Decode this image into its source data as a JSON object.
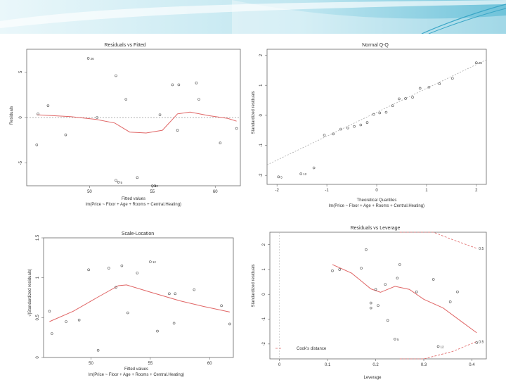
{
  "slide": {
    "colors": {
      "banner_light": "#d7f0f6",
      "banner_mid": "#9cd6e6",
      "banner_dark": "#4fb3cf"
    }
  },
  "chart_data": [
    {
      "type": "scatter",
      "title": "Residuals vs Fitted",
      "xlabel": "Fitted values",
      "sublabel": "lm(Price ~ Floor + Age + Rooms + Central.Heating)",
      "ylabel": "Residuals",
      "xlim": [
        45,
        62
      ],
      "ylim": [
        -7.5,
        7.5
      ],
      "xticks": [
        50,
        55,
        60
      ],
      "yticks": [
        -5,
        0,
        5
      ],
      "reference_line": 0,
      "colors": {
        "points": "#555555",
        "smooth": "#e06666",
        "ref": "#999999"
      },
      "points": [
        {
          "x": 45.9,
          "y": 0.4
        },
        {
          "x": 45.8,
          "y": -3.0
        },
        {
          "x": 46.7,
          "y": 1.3
        },
        {
          "x": 48.1,
          "y": -1.9
        },
        {
          "x": 49.9,
          "y": 6.5
        },
        {
          "x": 50.6,
          "y": 0.0
        },
        {
          "x": 52.1,
          "y": 4.6
        },
        {
          "x": 52.9,
          "y": 2.0
        },
        {
          "x": 52.1,
          "y": -6.9
        },
        {
          "x": 52.3,
          "y": -7.1
        },
        {
          "x": 53.8,
          "y": -6.6
        },
        {
          "x": 55.0,
          "y": -8.0
        },
        {
          "x": 55.2,
          "y": -7.7
        },
        {
          "x": 55.6,
          "y": 0.3
        },
        {
          "x": 56.6,
          "y": 3.6
        },
        {
          "x": 57.1,
          "y": 3.6
        },
        {
          "x": 57.0,
          "y": -1.4
        },
        {
          "x": 58.5,
          "y": 3.8
        },
        {
          "x": 58.7,
          "y": 2.0
        },
        {
          "x": 60.4,
          "y": -2.8
        },
        {
          "x": 61.7,
          "y": -1.2
        }
      ],
      "point_labels": [
        {
          "x": 49.9,
          "y": 6.5,
          "text": "26"
        },
        {
          "x": 55.0,
          "y": -8.0,
          "text": "12"
        },
        {
          "x": 52.3,
          "y": -7.1,
          "text": "5"
        }
      ],
      "smooth": [
        {
          "x": 45.8,
          "y": 0.3
        },
        {
          "x": 48.5,
          "y": 0.1
        },
        {
          "x": 50.5,
          "y": -0.2
        },
        {
          "x": 52.0,
          "y": -0.6
        },
        {
          "x": 53.2,
          "y": -1.6
        },
        {
          "x": 54.5,
          "y": -1.7
        },
        {
          "x": 55.8,
          "y": -1.4
        },
        {
          "x": 57.0,
          "y": 0.4
        },
        {
          "x": 58.0,
          "y": 0.6
        },
        {
          "x": 59.5,
          "y": 0.2
        },
        {
          "x": 61.0,
          "y": -0.1
        },
        {
          "x": 61.7,
          "y": -0.4
        }
      ]
    },
    {
      "type": "scatter",
      "title": "Normal Q-Q",
      "xlabel": "Theoretical Quantiles",
      "sublabel": "lm(Price ~ Floor + Age + Rooms + Central.Heating)",
      "ylabel": "Standardized residuals",
      "xlim": [
        -2.2,
        2.2
      ],
      "ylim": [
        -2.3,
        2.2
      ],
      "xticks": [
        -2,
        -1,
        0,
        1,
        2
      ],
      "yticks": [
        -2,
        -1,
        0,
        1,
        2
      ],
      "reference_line_points": [
        {
          "x": -2.2,
          "y": -1.65
        },
        {
          "x": 2.2,
          "y": 1.85
        }
      ],
      "colors": {
        "points": "#555555",
        "ref": "#aaaaaa"
      },
      "points": [
        {
          "x": -1.97,
          "y": -2.05
        },
        {
          "x": -1.52,
          "y": -1.95
        },
        {
          "x": -1.26,
          "y": -1.75
        },
        {
          "x": -1.05,
          "y": -0.66
        },
        {
          "x": -0.87,
          "y": -0.62
        },
        {
          "x": -0.72,
          "y": -0.46
        },
        {
          "x": -0.58,
          "y": -0.42
        },
        {
          "x": -0.45,
          "y": -0.37
        },
        {
          "x": -0.32,
          "y": -0.32
        },
        {
          "x": -0.19,
          "y": -0.24
        },
        {
          "x": -0.06,
          "y": 0.03
        },
        {
          "x": 0.06,
          "y": 0.08
        },
        {
          "x": 0.19,
          "y": 0.1
        },
        {
          "x": 0.32,
          "y": 0.32
        },
        {
          "x": 0.45,
          "y": 0.55
        },
        {
          "x": 0.58,
          "y": 0.56
        },
        {
          "x": 0.72,
          "y": 0.6
        },
        {
          "x": 0.87,
          "y": 0.9
        },
        {
          "x": 1.05,
          "y": 0.94
        },
        {
          "x": 1.26,
          "y": 1.05
        },
        {
          "x": 1.52,
          "y": 1.23
        },
        {
          "x": 2.0,
          "y": 1.75
        }
      ],
      "point_labels": [
        {
          "x": 2.0,
          "y": 1.75,
          "text": "26"
        },
        {
          "x": -1.52,
          "y": -1.95,
          "text": "12"
        },
        {
          "x": -1.97,
          "y": -2.05,
          "text": "5"
        }
      ]
    },
    {
      "type": "scatter",
      "title": "Scale-Location",
      "xlabel": "Fitted values",
      "sublabel": "lm(Price ~ Floor + Age + Rooms + Central.Heating)",
      "ylabel": "√|Standardized residuals|",
      "xlim": [
        46,
        62
      ],
      "ylim": [
        0,
        1.5
      ],
      "xticks": [
        50,
        55,
        60
      ],
      "yticks": [
        0.0,
        0.5,
        1.0,
        1.5
      ],
      "colors": {
        "points": "#555555",
        "smooth": "#e06666"
      },
      "points": [
        {
          "x": 46.5,
          "y": 0.58
        },
        {
          "x": 46.7,
          "y": 0.3
        },
        {
          "x": 47.9,
          "y": 0.45
        },
        {
          "x": 49.0,
          "y": 0.47
        },
        {
          "x": 49.8,
          "y": 1.1
        },
        {
          "x": 50.6,
          "y": 0.09
        },
        {
          "x": 51.5,
          "y": 1.12
        },
        {
          "x": 52.1,
          "y": 0.88
        },
        {
          "x": 52.6,
          "y": 1.15
        },
        {
          "x": 53.1,
          "y": 0.56
        },
        {
          "x": 53.9,
          "y": 1.06
        },
        {
          "x": 55.0,
          "y": 1.2
        },
        {
          "x": 55.6,
          "y": 0.33
        },
        {
          "x": 56.6,
          "y": 0.8
        },
        {
          "x": 57.1,
          "y": 0.8
        },
        {
          "x": 57.0,
          "y": 0.43
        },
        {
          "x": 58.7,
          "y": 0.85
        },
        {
          "x": 61.0,
          "y": 0.65
        },
        {
          "x": 61.7,
          "y": 0.42
        }
      ],
      "point_labels": [
        {
          "x": 55.0,
          "y": 1.2,
          "text": "12"
        }
      ],
      "smooth": [
        {
          "x": 46.5,
          "y": 0.45
        },
        {
          "x": 48.5,
          "y": 0.58
        },
        {
          "x": 50.5,
          "y": 0.75
        },
        {
          "x": 52.3,
          "y": 0.9
        },
        {
          "x": 53.0,
          "y": 0.91
        },
        {
          "x": 55.0,
          "y": 0.82
        },
        {
          "x": 57.5,
          "y": 0.71
        },
        {
          "x": 59.5,
          "y": 0.64
        },
        {
          "x": 61.7,
          "y": 0.57
        }
      ]
    },
    {
      "type": "scatter",
      "title": "Residuals vs Leverage",
      "xlabel": "Leverage",
      "ylabel": "Standardized residuals",
      "xlim": [
        -0.02,
        0.43
      ],
      "ylim": [
        -2.6,
        2.5
      ],
      "xticks": [
        0.0,
        0.1,
        0.2,
        0.3,
        0.4
      ],
      "yticks": [
        -2,
        -1,
        0,
        1,
        2
      ],
      "legend_text": "Cook's distance",
      "legend_position": "bottom-left",
      "contour_labels": [
        "0.5",
        "0.5"
      ],
      "colors": {
        "points": "#555555",
        "smooth": "#e06666",
        "cook": "#e06666"
      },
      "points": [
        {
          "x": 0.11,
          "y": 0.95
        },
        {
          "x": 0.125,
          "y": 1.0
        },
        {
          "x": 0.17,
          "y": 1.05
        },
        {
          "x": 0.18,
          "y": 1.8
        },
        {
          "x": 0.19,
          "y": -0.35
        },
        {
          "x": 0.19,
          "y": -0.55
        },
        {
          "x": 0.2,
          "y": 0.2
        },
        {
          "x": 0.205,
          "y": -0.45
        },
        {
          "x": 0.22,
          "y": 0.4
        },
        {
          "x": 0.225,
          "y": -1.05
        },
        {
          "x": 0.24,
          "y": -1.8
        },
        {
          "x": 0.245,
          "y": 0.65
        },
        {
          "x": 0.25,
          "y": 1.2
        },
        {
          "x": 0.285,
          "y": 0.1
        },
        {
          "x": 0.32,
          "y": 0.6
        },
        {
          "x": 0.33,
          "y": -2.1
        },
        {
          "x": 0.355,
          "y": -0.3
        },
        {
          "x": 0.37,
          "y": 0.1
        },
        {
          "x": 0.41,
          "y": -1.95
        }
      ],
      "point_labels": [
        {
          "x": 0.24,
          "y": -1.8,
          "text": "5"
        },
        {
          "x": 0.33,
          "y": -2.1,
          "text": "12"
        }
      ],
      "smooth": [
        {
          "x": 0.11,
          "y": 1.2
        },
        {
          "x": 0.15,
          "y": 0.85
        },
        {
          "x": 0.19,
          "y": 0.22
        },
        {
          "x": 0.21,
          "y": 0.08
        },
        {
          "x": 0.24,
          "y": 0.32
        },
        {
          "x": 0.27,
          "y": 0.2
        },
        {
          "x": 0.3,
          "y": -0.2
        },
        {
          "x": 0.34,
          "y": -0.55
        },
        {
          "x": 0.375,
          "y": -1.05
        },
        {
          "x": 0.41,
          "y": -1.55
        }
      ],
      "cook_upper": [
        {
          "x": 0.25,
          "y": 3.5
        },
        {
          "x": 0.32,
          "y": 2.6
        },
        {
          "x": 0.36,
          "y": 2.2
        },
        {
          "x": 0.41,
          "y": 1.85
        }
      ],
      "cook_lower": [
        {
          "x": 0.25,
          "y": -3.2
        },
        {
          "x": 0.3,
          "y": -2.75
        },
        {
          "x": 0.36,
          "y": -2.3
        },
        {
          "x": 0.41,
          "y": -1.9
        }
      ]
    }
  ]
}
